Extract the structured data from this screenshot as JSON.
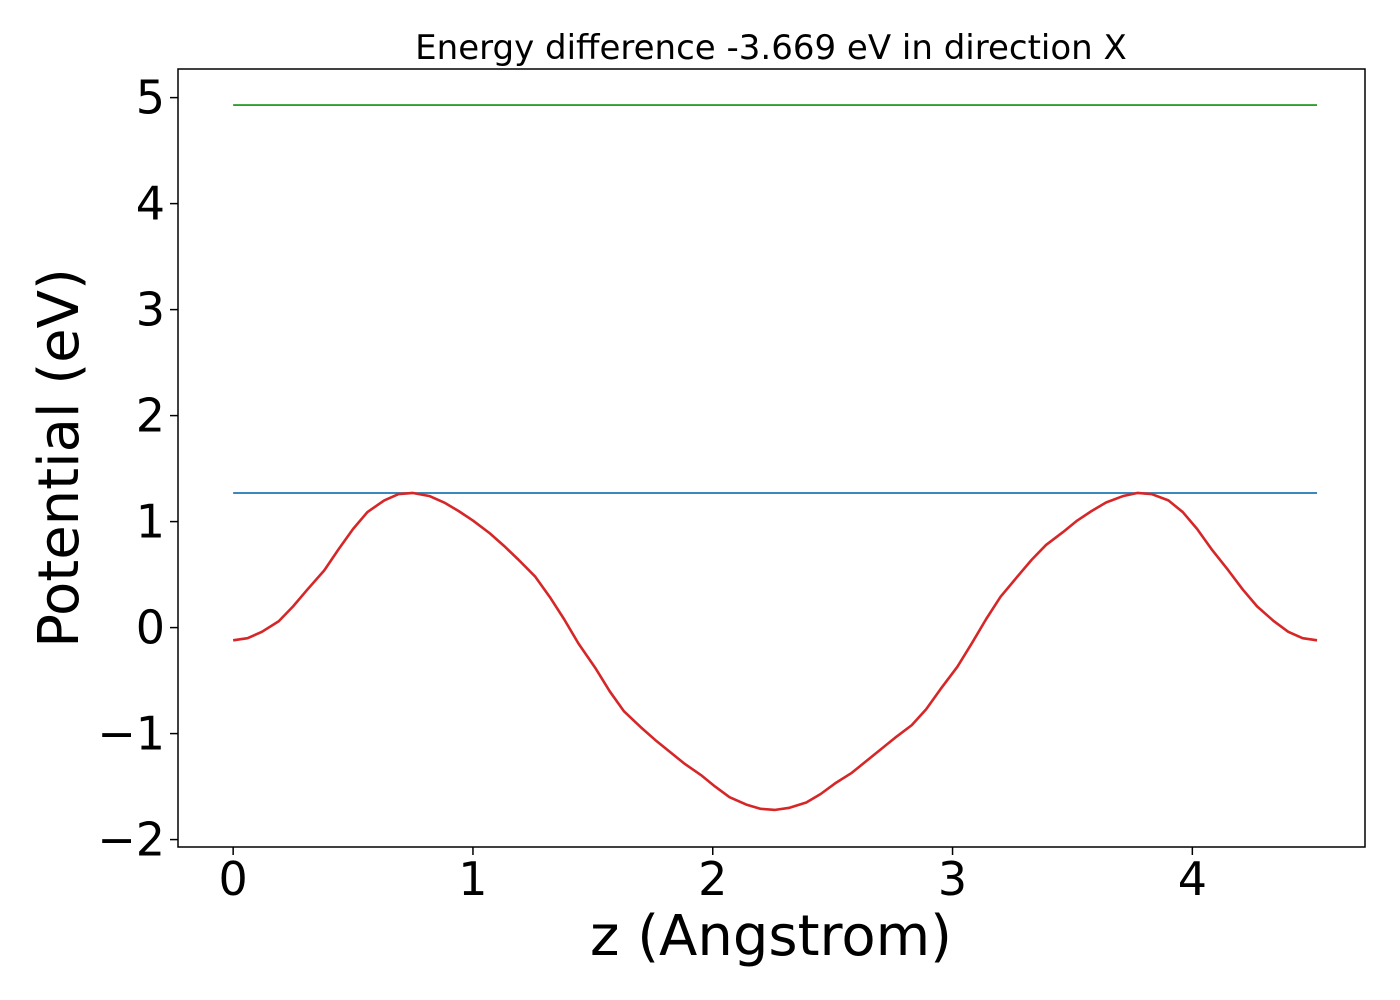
{
  "chart_data": {
    "type": "line",
    "title": "Energy difference -3.669 eV in direction X",
    "xlabel": "z (Angstrom)",
    "ylabel": "Potential (eV)",
    "xlim": [
      -0.23,
      4.72
    ],
    "ylim": [
      -2.07,
      5.27
    ],
    "xticks": [
      0,
      1,
      2,
      3,
      4
    ],
    "xtick_labels": [
      "0",
      "1",
      "2",
      "3",
      "4"
    ],
    "yticks": [
      -2,
      -1,
      0,
      1,
      2,
      3,
      4,
      5
    ],
    "ytick_labels": [
      "−2",
      "−1",
      "0",
      "1",
      "2",
      "3",
      "4",
      "5"
    ],
    "grid": false,
    "series": [
      {
        "color": "#2ca02c",
        "x": [
          0,
          4.52
        ],
        "y": [
          4.93,
          4.93
        ]
      },
      {
        "color": "#1f77b4",
        "x": [
          0,
          4.52
        ],
        "y": [
          1.27,
          1.27
        ]
      },
      {
        "color": "#d62728",
        "x": [
          0,
          0.06,
          0.12,
          0.19,
          0.25,
          0.31,
          0.38,
          0.44,
          0.5,
          0.56,
          0.63,
          0.69,
          0.75,
          0.82,
          0.88,
          0.94,
          1.0,
          1.07,
          1.13,
          1.19,
          1.26,
          1.32,
          1.38,
          1.44,
          1.51,
          1.57,
          1.63,
          1.7,
          1.76,
          1.82,
          1.88,
          1.95,
          2.01,
          2.07,
          2.14,
          2.2,
          2.26,
          2.32,
          2.39,
          2.45,
          2.51,
          2.58,
          2.64,
          2.7,
          2.76,
          2.83,
          2.89,
          2.95,
          3.02,
          3.08,
          3.14,
          3.2,
          3.27,
          3.33,
          3.39,
          3.46,
          3.52,
          3.58,
          3.64,
          3.71,
          3.77,
          3.83,
          3.9,
          3.96,
          4.02,
          4.08,
          4.15,
          4.21,
          4.27,
          4.34,
          4.4,
          4.46,
          4.52
        ],
        "y": [
          -0.12,
          -0.1,
          -0.04,
          0.06,
          0.2,
          0.36,
          0.54,
          0.74,
          0.93,
          1.09,
          1.2,
          1.26,
          1.27,
          1.24,
          1.18,
          1.1,
          1.01,
          0.89,
          0.77,
          0.64,
          0.48,
          0.29,
          0.08,
          -0.15,
          -0.38,
          -0.6,
          -0.79,
          -0.94,
          -1.06,
          -1.17,
          -1.28,
          -1.39,
          -1.5,
          -1.6,
          -1.67,
          -1.71,
          -1.72,
          -1.7,
          -1.65,
          -1.57,
          -1.47,
          -1.37,
          -1.26,
          -1.15,
          -1.04,
          -0.92,
          -0.77,
          -0.58,
          -0.37,
          -0.15,
          0.08,
          0.29,
          0.48,
          0.64,
          0.78,
          0.9,
          1.01,
          1.1,
          1.18,
          1.24,
          1.27,
          1.26,
          1.2,
          1.09,
          0.93,
          0.74,
          0.54,
          0.36,
          0.2,
          0.06,
          -0.04,
          -0.1,
          -0.12
        ]
      }
    ]
  }
}
